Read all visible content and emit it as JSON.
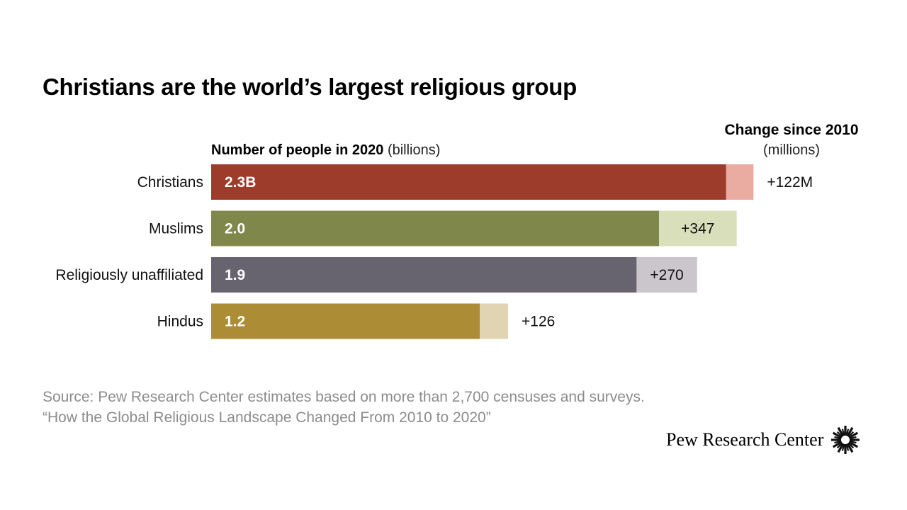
{
  "title": "Christians are the world’s largest religious group",
  "source_line1": "Source: Pew Research Center estimates based on more than 2,700 censuses and surveys.",
  "source_line2": "“How the Global Religious Landscape Changed From 2010 to 2020”",
  "brand_name": "Pew Research Center",
  "brand_logo_icon": "pew-sunburst-icon",
  "chart_data": {
    "type": "bar",
    "orientation": "horizontal",
    "stacked": true,
    "axis_title_bold": "Number of people in 2020",
    "axis_title_unit": " (billions)",
    "change_header_bold": "Change since 2010",
    "change_header_unit": "(millions)",
    "categories": [
      "Christians",
      "Muslims",
      "Religiously unaffiliated",
      "Hindus"
    ],
    "series": [
      {
        "name": "Number of people in 2020",
        "values": [
          2.3,
          2.0,
          1.9,
          1.2
        ],
        "labels": [
          "2.3B",
          "2.0",
          "1.9",
          "1.2"
        ],
        "colors": [
          "#9e3c2c",
          "#80874a",
          "#67636f",
          "#ad8c36"
        ]
      },
      {
        "name": "Change since 2010",
        "values": [
          0.122,
          0.347,
          0.27,
          0.126
        ],
        "labels": [
          "+122M",
          "+347",
          "+270",
          "+126"
        ],
        "colors": [
          "#eaaba1",
          "#d9dfba",
          "#cbc5cc",
          "#e0d4b2"
        ]
      }
    ]
  }
}
